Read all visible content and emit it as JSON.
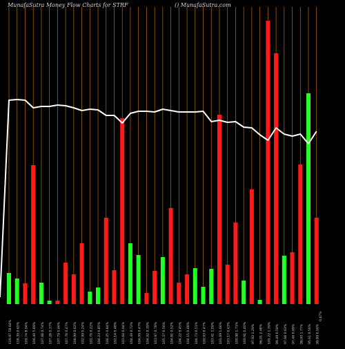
{
  "header": {
    "title": "MunafaSutra  Money Flow  Charts for STRF",
    "site": "() MunafaSutra.com"
  },
  "colors": {
    "background": "#000000",
    "grid": "#b86f12",
    "up": "#22ff22",
    "down": "#ff1a1a",
    "line": "#ffffff",
    "text": "#d0d0d0"
  },
  "chart_data": {
    "type": "bar",
    "grid": true,
    "categories": [
      "119.97 58.64%",
      "118.39 0.65%",
      "109.74 8.04%",
      "106.49 5.89%",
      "107.68 0.74%",
      "107.28 0.37%",
      "107.79 0.46%",
      "107.78 0.47%",
      "106.99 0.62%",
      "102.99 0.24%",
      "102.76 0.22%",
      "104.23 0.85%",
      "104.25 0.84%",
      "102.14 0.48%",
      "103.64 0.04%",
      "104.49 0.72%",
      "104.09 0.47%",
      "104.92 0.39%",
      "103.97 0.78%",
      "105.37 0.56%",
      "104.81 0.52%",
      "104.22 0.45%",
      "104.15 0.48%",
      "104.73 0.51%",
      "100.93 0.47%",
      "103.61 1.09%",
      "101.69 1.66%",
      "103.17 0.63%",
      "100.98 1.71%",
      "100.91 0.40%",
      "97.92 1.29%",
      "96.01 2.48%",
      "101.22 1.39%",
      "99.49 0.59%",
      "97.68 0.63%",
      "97.46 0.69%",
      "98.00 1.77%",
      "95.61 0.56%",
      "99.89 0.16%"
    ],
    "series": [
      {
        "values": [
          45,
          37,
          30,
          201,
          31,
          5,
          5,
          60,
          43,
          88,
          18,
          24,
          125,
          49,
          269,
          88,
          71,
          16,
          48,
          68,
          139,
          31,
          43,
          52,
          25,
          51,
          274,
          57,
          118,
          34,
          166,
          6,
          410,
          363,
          70,
          75,
          202,
          305,
          125
        ],
        "directions": [
          "up",
          "up",
          "down",
          "down",
          "up",
          "up",
          "down",
          "down",
          "down",
          "down",
          "up",
          "up",
          "down",
          "down",
          "down",
          "up",
          "up",
          "down",
          "down",
          "up",
          "down",
          "down",
          "down",
          "up",
          "up",
          "up",
          "down",
          "down",
          "down",
          "up",
          "down",
          "up",
          "down",
          "down",
          "up",
          "down",
          "down",
          "up",
          "down"
        ]
      },
      {
        "line_values": [
          295,
          296,
          295,
          284,
          286,
          286,
          288,
          287,
          284,
          280,
          282,
          281,
          273,
          273,
          262,
          276,
          279,
          279,
          278,
          282,
          280,
          278,
          278,
          278,
          279,
          264,
          266,
          263,
          264,
          256,
          255,
          245,
          237,
          255,
          246,
          243,
          246,
          232,
          250
        ]
      }
    ],
    "xlabel": "",
    "ylabel": "",
    "ylim": [
      0,
      440
    ],
    "extra_label": "0.67%"
  }
}
